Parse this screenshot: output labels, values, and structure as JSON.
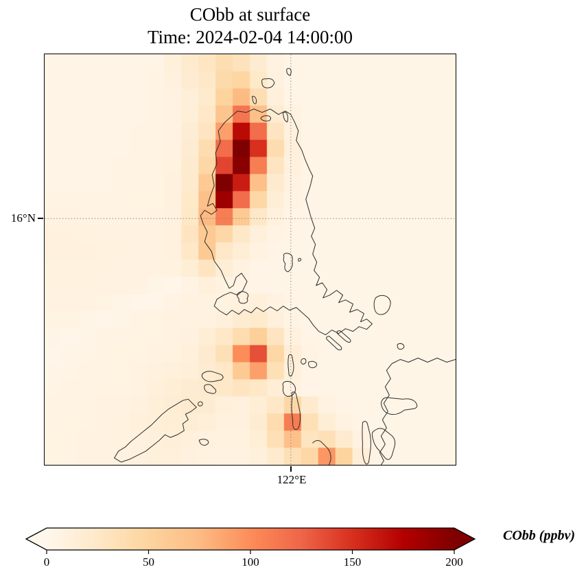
{
  "title": {
    "line1": "CObb at surface",
    "line2": "Time: 2024-02-04 14:00:00"
  },
  "axes": {
    "y_tick_label": "16°N",
    "x_tick_label": "122°E"
  },
  "colorbar": {
    "label": "CObb (ppbv)",
    "ticks": [
      "0",
      "50",
      "100",
      "150",
      "200"
    ],
    "tick_values": [
      0,
      50,
      100,
      150,
      200
    ],
    "vmin": 0,
    "vmax": 200,
    "colors": [
      "#fff7ec",
      "#fee8c8",
      "#fdd49e",
      "#fdbb84",
      "#fc8d59",
      "#ef6548",
      "#d7301f",
      "#b30000",
      "#7f0000"
    ]
  },
  "colors": {
    "coastline": "#2b2b2b",
    "gridline": "#8a8a8a",
    "spine": "#000000"
  },
  "chart_data": {
    "type": "heatmap",
    "title": "CObb at surface",
    "subtitle": "Time: 2024-02-04 14:00:00",
    "colorbar_label": "CObb (ppbv)",
    "units": "ppbv",
    "colormap": "OrRd",
    "vmin": 0,
    "vmax": 200,
    "extend": "both",
    "region": "Philippines (Luzon) map with coastlines",
    "x_tick": {
      "label": "122°E",
      "frac": 0.599
    },
    "y_tick": {
      "label": "16°N",
      "frac": 0.4
    },
    "grid_on": true,
    "grid": {
      "ncols": 24,
      "nrows": 24,
      "note": "CObb ppbv values, row 0 = north/top of map, col 0 = west/left",
      "values": [
        [
          5,
          5,
          5,
          5,
          5,
          5,
          5,
          12,
          20,
          28,
          38,
          32,
          18,
          8,
          4,
          4,
          4,
          4,
          4,
          4,
          4,
          4,
          4,
          4
        ],
        [
          5,
          5,
          5,
          5,
          5,
          5,
          6,
          10,
          18,
          25,
          42,
          48,
          24,
          10,
          4,
          4,
          4,
          4,
          4,
          4,
          4,
          4,
          4,
          4
        ],
        [
          5,
          5,
          5,
          5,
          5,
          5,
          6,
          8,
          14,
          22,
          50,
          75,
          38,
          12,
          5,
          4,
          4,
          4,
          4,
          4,
          4,
          4,
          4,
          4
        ],
        [
          5,
          5,
          5,
          5,
          5,
          5,
          6,
          8,
          14,
          25,
          65,
          115,
          70,
          18,
          8,
          4,
          4,
          4,
          4,
          4,
          4,
          4,
          4,
          4
        ],
        [
          5,
          5,
          5,
          5,
          5,
          6,
          6,
          8,
          16,
          30,
          90,
          170,
          120,
          30,
          10,
          5,
          4,
          4,
          4,
          4,
          4,
          4,
          4,
          4
        ],
        [
          5,
          5,
          5,
          5,
          5,
          6,
          6,
          8,
          18,
          40,
          120,
          205,
          150,
          40,
          12,
          5,
          4,
          4,
          4,
          4,
          4,
          4,
          4,
          4
        ],
        [
          5,
          5,
          5,
          5,
          6,
          6,
          7,
          9,
          20,
          45,
          140,
          195,
          110,
          30,
          10,
          5,
          4,
          4,
          4,
          4,
          4,
          4,
          4,
          4
        ],
        [
          5,
          5,
          5,
          5,
          6,
          6,
          7,
          10,
          22,
          60,
          200,
          160,
          70,
          20,
          8,
          5,
          4,
          4,
          4,
          4,
          4,
          4,
          4,
          4
        ],
        [
          6,
          6,
          6,
          6,
          6,
          7,
          7,
          10,
          24,
          70,
          185,
          120,
          45,
          15,
          6,
          5,
          4,
          4,
          4,
          4,
          4,
          4,
          4,
          4
        ],
        [
          8,
          8,
          7,
          7,
          7,
          7,
          8,
          10,
          25,
          75,
          110,
          60,
          25,
          10,
          5,
          5,
          4,
          4,
          4,
          4,
          4,
          4,
          4,
          4
        ],
        [
          10,
          10,
          9,
          8,
          8,
          8,
          8,
          10,
          30,
          60,
          45,
          25,
          12,
          6,
          5,
          4,
          4,
          4,
          4,
          4,
          4,
          4,
          4,
          4
        ],
        [
          10,
          10,
          10,
          9,
          9,
          8,
          8,
          10,
          25,
          60,
          25,
          15,
          8,
          5,
          4,
          4,
          4,
          4,
          4,
          4,
          4,
          4,
          4,
          4
        ],
        [
          9,
          9,
          9,
          9,
          8,
          8,
          8,
          9,
          15,
          30,
          15,
          8,
          5,
          4,
          4,
          4,
          4,
          4,
          4,
          4,
          4,
          4,
          4,
          4
        ],
        [
          9,
          9,
          9,
          8,
          8,
          8,
          4,
          3,
          6,
          12,
          8,
          6,
          5,
          4,
          4,
          4,
          4,
          4,
          4,
          4,
          4,
          4,
          4,
          4
        ],
        [
          8,
          8,
          8,
          7,
          4,
          3,
          3,
          6,
          8,
          8,
          8,
          10,
          12,
          8,
          5,
          4,
          4,
          4,
          4,
          4,
          4,
          4,
          4,
          4
        ],
        [
          7,
          7,
          4,
          3,
          4,
          6,
          7,
          8,
          8,
          8,
          12,
          18,
          22,
          12,
          6,
          4,
          4,
          4,
          4,
          4,
          4,
          4,
          4,
          4
        ],
        [
          4,
          3,
          4,
          6,
          6,
          7,
          7,
          8,
          10,
          15,
          25,
          40,
          55,
          30,
          10,
          5,
          4,
          4,
          4,
          4,
          4,
          4,
          4,
          4
        ],
        [
          3,
          4,
          5,
          6,
          7,
          7,
          8,
          9,
          12,
          20,
          35,
          100,
          135,
          45,
          15,
          6,
          4,
          4,
          4,
          4,
          4,
          4,
          4,
          4
        ],
        [
          4,
          5,
          6,
          6,
          7,
          8,
          10,
          12,
          14,
          18,
          25,
          60,
          90,
          35,
          12,
          5,
          4,
          4,
          4,
          4,
          4,
          4,
          4,
          4
        ],
        [
          5,
          6,
          6,
          7,
          7,
          8,
          12,
          15,
          18,
          20,
          25,
          30,
          25,
          15,
          8,
          5,
          4,
          4,
          4,
          4,
          4,
          4,
          4,
          4
        ],
        [
          6,
          6,
          7,
          8,
          8,
          10,
          14,
          16,
          20,
          18,
          12,
          10,
          15,
          25,
          45,
          20,
          8,
          5,
          4,
          4,
          4,
          4,
          4,
          4
        ],
        [
          6,
          7,
          7,
          8,
          9,
          12,
          14,
          15,
          16,
          14,
          10,
          10,
          18,
          40,
          110,
          35,
          15,
          8,
          5,
          4,
          4,
          4,
          4,
          4
        ],
        [
          7,
          7,
          8,
          8,
          9,
          10,
          12,
          13,
          12,
          10,
          9,
          9,
          15,
          35,
          70,
          30,
          35,
          20,
          8,
          5,
          4,
          4,
          4,
          4
        ],
        [
          7,
          7,
          8,
          8,
          9,
          10,
          11,
          12,
          10,
          9,
          8,
          8,
          12,
          20,
          35,
          45,
          95,
          50,
          15,
          6,
          4,
          4,
          4,
          4
        ]
      ]
    }
  }
}
